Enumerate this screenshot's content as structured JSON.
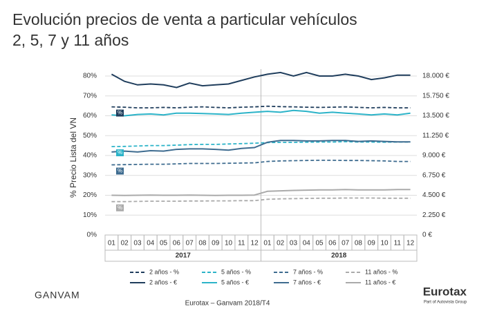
{
  "chart_data": {
    "type": "line",
    "title": "Evolución precios de venta a particular vehículos",
    "subtitle": "2, 5, 7 y 11 años",
    "y_label": "% Precio Lista del VN",
    "categories": [
      "01",
      "02",
      "03",
      "04",
      "05",
      "06",
      "07",
      "08",
      "09",
      "10",
      "11",
      "12",
      "01",
      "02",
      "03",
      "04",
      "05",
      "06",
      "07",
      "08",
      "09",
      "10",
      "11",
      "12"
    ],
    "years": [
      "2017",
      "2018"
    ],
    "badge_text": "%",
    "ylim": [
      0,
      80
    ],
    "yticks": [
      {
        "value": 0,
        "label": "0%"
      },
      {
        "value": 10,
        "label": "10%"
      },
      {
        "value": 20,
        "label": "20%"
      },
      {
        "value": 30,
        "label": "30%"
      },
      {
        "value": 40,
        "label": "40%"
      },
      {
        "value": 50,
        "label": "50%"
      },
      {
        "value": 60,
        "label": "60%"
      },
      {
        "value": 70,
        "label": "70%"
      },
      {
        "value": 80,
        "label": "80%"
      }
    ],
    "y2lim": [
      0,
      18000
    ],
    "y2ticks": [
      {
        "value": 0,
        "label": "0 €"
      },
      {
        "value": 2250,
        "label": "2.250 €"
      },
      {
        "value": 4500,
        "label": "4.500 €"
      },
      {
        "value": 6750,
        "label": "6.750 €"
      },
      {
        "value": 9000,
        "label": "9.000 €"
      },
      {
        "value": 11250,
        "label": "11.250 €"
      },
      {
        "value": 13500,
        "label": "13.500 €"
      },
      {
        "value": 15750,
        "label": "15.750 €"
      },
      {
        "value": 18000,
        "label": "18.000 €"
      }
    ],
    "grid": true,
    "series": [
      {
        "name": "2 años - %",
        "color": "#1f3d5c",
        "dashed": true,
        "axis": "y",
        "values": [
          64.5,
          64.3,
          64,
          64,
          64.2,
          64,
          64.3,
          64.5,
          64.2,
          64,
          64.3,
          64.5,
          64.8,
          64.6,
          64.5,
          64.3,
          64.2,
          64.3,
          64.5,
          64.2,
          64,
          64.2,
          64,
          64
        ]
      },
      {
        "name": "5 años - %",
        "color": "#2bb3c8",
        "dashed": true,
        "axis": "y",
        "values": [
          44.5,
          44.6,
          44.8,
          45,
          45,
          45.2,
          45.5,
          45.6,
          45.6,
          45.8,
          46,
          46.2,
          46.5,
          46.6,
          46.6,
          46.7,
          46.8,
          46.8,
          47,
          46.8,
          46.8,
          46.7,
          46.8,
          46.8
        ]
      },
      {
        "name": "7 años - %",
        "color": "#3d6b8f",
        "dashed": true,
        "axis": "y",
        "values": [
          35.3,
          35.4,
          35.5,
          35.6,
          35.6,
          35.8,
          36,
          36,
          36,
          36.1,
          36.2,
          36.3,
          37,
          37.3,
          37.4,
          37.5,
          37.6,
          37.6,
          37.5,
          37.5,
          37.4,
          37.3,
          37,
          37
        ]
      },
      {
        "name": "11 años - %",
        "color": "#aaaaaa",
        "dashed": true,
        "axis": "y",
        "values": [
          16.8,
          16.8,
          16.9,
          17,
          17,
          17,
          17.1,
          17.1,
          17.2,
          17.2,
          17.3,
          17.3,
          18,
          18.2,
          18.3,
          18.4,
          18.5,
          18.5,
          18.6,
          18.6,
          18.6,
          18.5,
          18.5,
          18.5
        ]
      },
      {
        "name": "2 años - €",
        "color": "#1f3d5c",
        "dashed": false,
        "axis": "y2",
        "values": [
          18200,
          17400,
          17000,
          17100,
          17000,
          16700,
          17200,
          16900,
          17000,
          17100,
          17500,
          17900,
          18200,
          18400,
          18000,
          18400,
          18000,
          18000,
          18200,
          18000,
          17600,
          17800,
          18100,
          18100
        ]
      },
      {
        "name": "5 años - €",
        "color": "#2bb3c8",
        "dashed": false,
        "axis": "y2",
        "values": [
          13600,
          13500,
          13650,
          13700,
          13600,
          13800,
          13800,
          13750,
          13700,
          13650,
          13800,
          13900,
          14000,
          13900,
          14100,
          14000,
          13800,
          13900,
          13800,
          13700,
          13600,
          13700,
          13600,
          13800
        ]
      },
      {
        "name": "7 años - €",
        "color": "#3d6b8f",
        "dashed": false,
        "axis": "y2",
        "values": [
          9400,
          9500,
          9400,
          9550,
          9500,
          9700,
          9750,
          9750,
          9700,
          9600,
          9800,
          9900,
          10500,
          10700,
          10700,
          10650,
          10650,
          10700,
          10700,
          10600,
          10650,
          10600,
          10550,
          10550
        ]
      },
      {
        "name": "11 años - €",
        "color": "#aaaaaa",
        "dashed": false,
        "axis": "y2",
        "values": [
          4500,
          4480,
          4500,
          4520,
          4500,
          4500,
          4520,
          4500,
          4480,
          4500,
          4500,
          4520,
          4950,
          5000,
          5050,
          5080,
          5100,
          5100,
          5150,
          5100,
          5100,
          5100,
          5150,
          5150
        ]
      }
    ],
    "source": "Eurotax – Ganvam 2018/T4",
    "logo_left": "GANVAM",
    "logo_right": "Eurotax",
    "logo_right_sub": "Part of Autovista Group"
  }
}
